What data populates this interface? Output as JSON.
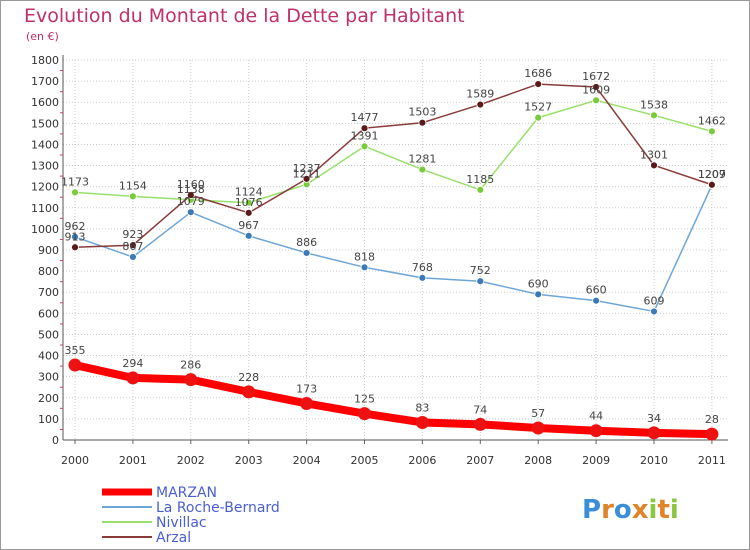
{
  "colors": {
    "title": "#c0306a",
    "legend_text": "#4a5fd4",
    "grid": "#cccccc",
    "frame": "#999999"
  },
  "chart_data": {
    "type": "line",
    "title": "Evolution du Montant de la Dette par Habitant",
    "subtitle": "(en €)",
    "xlabel": "",
    "ylabel": "",
    "ylim": [
      0,
      1800
    ],
    "y_ticks": [
      0,
      100,
      200,
      300,
      400,
      500,
      600,
      700,
      800,
      900,
      1000,
      1100,
      1200,
      1300,
      1400,
      1500,
      1600,
      1700,
      1800
    ],
    "categories": [
      "2000",
      "2001",
      "2002",
      "2003",
      "2004",
      "2005",
      "2006",
      "2007",
      "2008",
      "2009",
      "2010",
      "2011"
    ],
    "grid": true,
    "legend_position": "bottom-left",
    "series": [
      {
        "name": "MARZAN",
        "color": "#ff0000",
        "marker_color": "#ee1111",
        "emphasis": true,
        "values": [
          355,
          294,
          286,
          228,
          173,
          125,
          83,
          74,
          57,
          44,
          34,
          28
        ]
      },
      {
        "name": "La Roche-Bernard",
        "color": "#6ea6d8",
        "marker_color": "#3a7ab8",
        "emphasis": false,
        "values": [
          962,
          867,
          1079,
          967,
          886,
          818,
          768,
          752,
          690,
          660,
          609,
          1207
        ]
      },
      {
        "name": "Nivillac",
        "color": "#99e06a",
        "marker_color": "#7acb3a",
        "emphasis": false,
        "values": [
          1173,
          1154,
          1138,
          1124,
          1211,
          1391,
          1281,
          1185,
          1527,
          1609,
          1538,
          1462
        ]
      },
      {
        "name": "Arzal",
        "color": "#8b3a3a",
        "marker_color": "#5a1a1a",
        "emphasis": false,
        "values": [
          913,
          923,
          1160,
          1076,
          1237,
          1477,
          1503,
          1589,
          1686,
          1672,
          1301,
          1209
        ]
      }
    ]
  },
  "brand": {
    "letters": [
      {
        "ch": "P",
        "color": "#3a8fd8"
      },
      {
        "ch": "r",
        "color": "#e0842a"
      },
      {
        "ch": "o",
        "color": "#3a8fd8"
      },
      {
        "ch": "x",
        "color": "#e0842a"
      },
      {
        "ch": "i",
        "color": "#8cc63e"
      },
      {
        "ch": "t",
        "color": "#e0842a"
      },
      {
        "ch": "i",
        "color": "#8cc63e"
      }
    ]
  }
}
